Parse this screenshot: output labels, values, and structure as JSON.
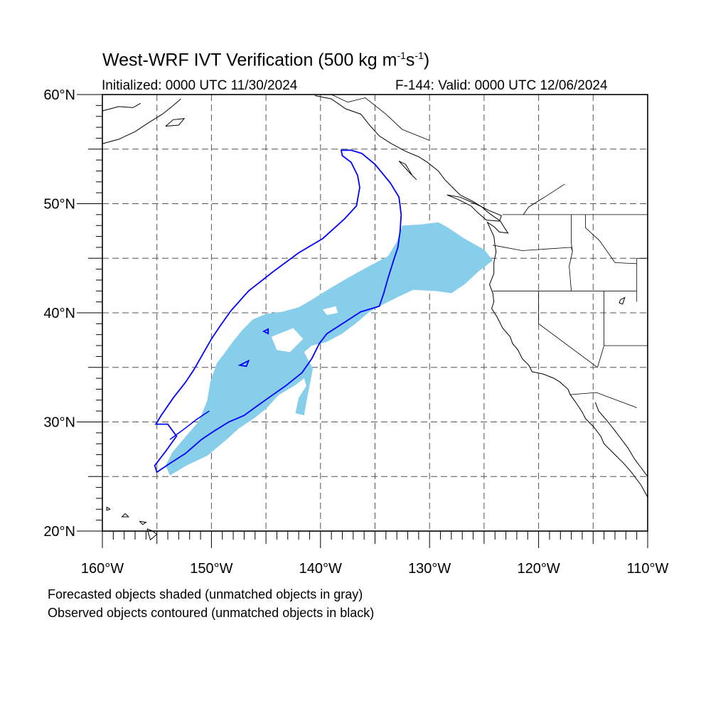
{
  "title": {
    "prefix": "West-WRF IVT Verification (500 kg m",
    "exp1": "-1",
    "mid": "s",
    "exp2": "-1",
    "suffix": ")"
  },
  "subtitle_left": "Initialized: 0000 UTC 11/30/2024",
  "subtitle_right": "F-144: Valid: 0000 UTC 12/06/2024",
  "lat_labels": [
    "60°N",
    "50°N",
    "40°N",
    "30°N",
    "20°N"
  ],
  "lon_labels": [
    "160°W",
    "150°W",
    "140°W",
    "130°W",
    "120°W",
    "110°W"
  ],
  "legend_notes": [
    "Forecasted objects shaded (unmatched objects in gray)",
    "Observed objects contoured (unmatched objects in black)"
  ],
  "map_extent": {
    "lon_min": -160,
    "lon_max": -110,
    "lat_min": 20,
    "lat_max": 60
  },
  "colors": {
    "forecast_fill": "#87ceeb",
    "observed_contour": "#0000ff",
    "grid": "#555555",
    "coast": "#000000"
  },
  "forecast_object": [
    [
      -153.8,
      25.1
    ],
    [
      -152.3,
      26.0
    ],
    [
      -150.4,
      26.9
    ],
    [
      -148.7,
      28.3
    ],
    [
      -147.5,
      29.4
    ],
    [
      -146.0,
      30.4
    ],
    [
      -145.0,
      31.2
    ],
    [
      -143.8,
      32.5
    ],
    [
      -142.4,
      33.3
    ],
    [
      -141.5,
      34.0
    ],
    [
      -141.3,
      33.3
    ],
    [
      -142.0,
      32.2
    ],
    [
      -142.3,
      30.8
    ],
    [
      -141.5,
      30.6
    ],
    [
      -141.3,
      31.8
    ],
    [
      -140.7,
      34.9
    ],
    [
      -141.5,
      36.4
    ],
    [
      -140.8,
      37.0
    ],
    [
      -139.5,
      37.3
    ],
    [
      -138.0,
      38.1
    ],
    [
      -136.8,
      39.0
    ],
    [
      -135.5,
      40.1
    ],
    [
      -134.2,
      40.8
    ],
    [
      -132.8,
      41.5
    ],
    [
      -131.5,
      42.1
    ],
    [
      -129.5,
      42.0
    ],
    [
      -128.0,
      41.8
    ],
    [
      -126.8,
      42.6
    ],
    [
      -125.5,
      43.8
    ],
    [
      -124.2,
      44.8
    ],
    [
      -125.0,
      45.8
    ],
    [
      -126.8,
      46.8
    ],
    [
      -128.3,
      47.8
    ],
    [
      -129.2,
      48.3
    ],
    [
      -130.8,
      48.1
    ],
    [
      -132.5,
      48.0
    ],
    [
      -133.0,
      46.5
    ],
    [
      -133.8,
      45.2
    ],
    [
      -135.5,
      44.3
    ],
    [
      -137.5,
      43.2
    ],
    [
      -139.2,
      42.2
    ],
    [
      -140.8,
      41.2
    ],
    [
      -142.0,
      40.5
    ],
    [
      -143.5,
      40.1
    ],
    [
      -145.0,
      39.9
    ],
    [
      -146.2,
      39.4
    ],
    [
      -147.2,
      38.4
    ],
    [
      -148.0,
      37.4
    ],
    [
      -148.8,
      36.3
    ],
    [
      -149.5,
      35.4
    ],
    [
      -150.1,
      33.7
    ],
    [
      -150.4,
      31.9
    ],
    [
      -151.2,
      30.0
    ],
    [
      -152.5,
      28.5
    ],
    [
      -153.6,
      27.2
    ],
    [
      -154.2,
      26.0
    ]
  ],
  "observed_object": [
    [
      -155.0,
      25.4
    ],
    [
      -153.8,
      26.2
    ],
    [
      -152.4,
      27.1
    ],
    [
      -150.9,
      28.4
    ],
    [
      -149.7,
      29.2
    ],
    [
      -148.4,
      30.0
    ],
    [
      -147.0,
      30.6
    ],
    [
      -145.9,
      31.4
    ],
    [
      -144.5,
      32.4
    ],
    [
      -143.2,
      33.3
    ],
    [
      -141.7,
      34.5
    ],
    [
      -140.8,
      35.8
    ],
    [
      -140.1,
      37.2
    ],
    [
      -139.4,
      38.1
    ],
    [
      -138.0,
      39.0
    ],
    [
      -136.3,
      40.1
    ],
    [
      -134.6,
      40.6
    ],
    [
      -134.2,
      41.8
    ],
    [
      -133.8,
      43.2
    ],
    [
      -133.3,
      44.8
    ],
    [
      -132.9,
      46.0
    ],
    [
      -132.7,
      47.5
    ],
    [
      -132.6,
      49.0
    ],
    [
      -132.8,
      50.6
    ],
    [
      -133.6,
      51.9
    ],
    [
      -135.0,
      53.6
    ],
    [
      -136.2,
      54.6
    ],
    [
      -137.2,
      54.9
    ],
    [
      -138.1,
      54.9
    ],
    [
      -138.0,
      54.4
    ],
    [
      -137.2,
      53.8
    ],
    [
      -136.6,
      52.6
    ],
    [
      -136.4,
      51.5
    ],
    [
      -136.7,
      49.8
    ],
    [
      -137.8,
      48.6
    ],
    [
      -139.8,
      46.8
    ],
    [
      -142.0,
      45.5
    ],
    [
      -144.3,
      43.8
    ],
    [
      -146.6,
      42.0
    ],
    [
      -148.2,
      40.2
    ],
    [
      -149.2,
      38.8
    ],
    [
      -150.0,
      37.6
    ],
    [
      -150.8,
      36.2
    ],
    [
      -151.6,
      34.8
    ],
    [
      -152.4,
      33.6
    ],
    [
      -153.5,
      32.2
    ],
    [
      -154.6,
      30.6
    ],
    [
      -155.1,
      29.8
    ],
    [
      -154.0,
      29.8
    ],
    [
      -153.2,
      28.7
    ],
    [
      -154.2,
      27.3
    ],
    [
      -155.2,
      26.0
    ]
  ]
}
